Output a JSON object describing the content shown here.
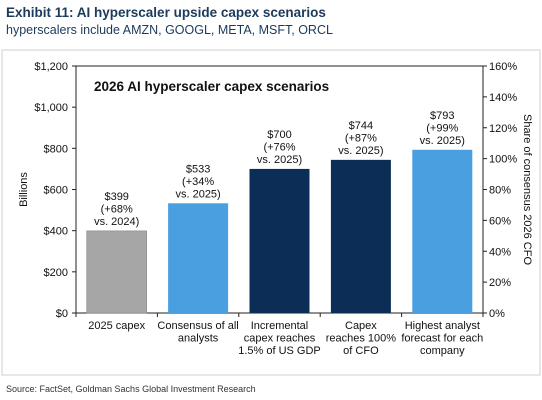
{
  "header": {
    "exhibit_title": "Exhibit 11: AI hyperscaler upside capex scenarios",
    "exhibit_subtitle": "hyperscalers include AMZN, GOOGL, META, MSFT, ORCL"
  },
  "footer": {
    "source": "Source: FactSet, Goldman Sachs Global Investment Research"
  },
  "colors": {
    "gray_bar": "#a6a6a6",
    "light_blue_bar": "#4a9fe0",
    "navy_bar": "#0c2d55",
    "title_color": "#1b3a5c",
    "frame": "#222222"
  },
  "chart_data": {
    "type": "bar",
    "title": "2026 AI hyperscaler capex scenarios",
    "ylabel": "Billions",
    "y2label": "Share of consensus 2026 CFO",
    "ylim": [
      0,
      1200
    ],
    "y2lim": [
      0,
      160
    ],
    "yticks": [
      "$0",
      "$200",
      "$400",
      "$600",
      "$800",
      "$1,000",
      "$1,200"
    ],
    "y2ticks": [
      "0%",
      "20%",
      "40%",
      "60%",
      "80%",
      "100%",
      "120%",
      "140%",
      "160%"
    ],
    "grid": false,
    "categories": [
      [
        "2025 capex"
      ],
      [
        "Consensus of all",
        "analysts"
      ],
      [
        "Incremental",
        "capex reaches",
        "1.5% of US GDP"
      ],
      [
        "Capex",
        "reaches 100%",
        "of CFO"
      ],
      [
        "Highest analyst",
        "forecast for each",
        "company"
      ]
    ],
    "values": [
      399,
      533,
      700,
      744,
      793
    ],
    "data_labels": [
      [
        "$399",
        "(+68%",
        "vs. 2024)"
      ],
      [
        "$533",
        "(+34%",
        "vs. 2025)"
      ],
      [
        "$700",
        "(+76%",
        "vs. 2025)"
      ],
      [
        "$744",
        "(+87%",
        "vs. 2025)"
      ],
      [
        "$793",
        "(+99%",
        "vs. 2025)"
      ]
    ],
    "bar_colors": [
      "#a6a6a6",
      "#4a9fe0",
      "#0c2d55",
      "#0c2d55",
      "#4a9fe0"
    ]
  }
}
